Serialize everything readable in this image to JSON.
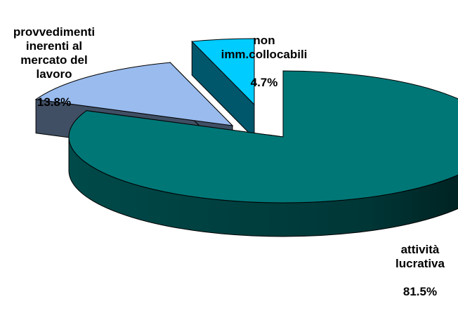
{
  "chart_data": {
    "type": "pie",
    "style": "3d-exploded",
    "slices": [
      {
        "label": "attività\nlucrativa",
        "value": 81.5,
        "value_label": "81.5%",
        "color": "#007777"
      },
      {
        "label": "provvedimenti\ninerenti al\nmercato del\nlavoro",
        "value": 13.8,
        "value_label": "13.8%",
        "color": "#99bbee"
      },
      {
        "label": "non\nimm.collocabili",
        "value": 4.7,
        "value_label": "4.7%",
        "color": "#00ccff"
      }
    ],
    "legend": "none"
  }
}
